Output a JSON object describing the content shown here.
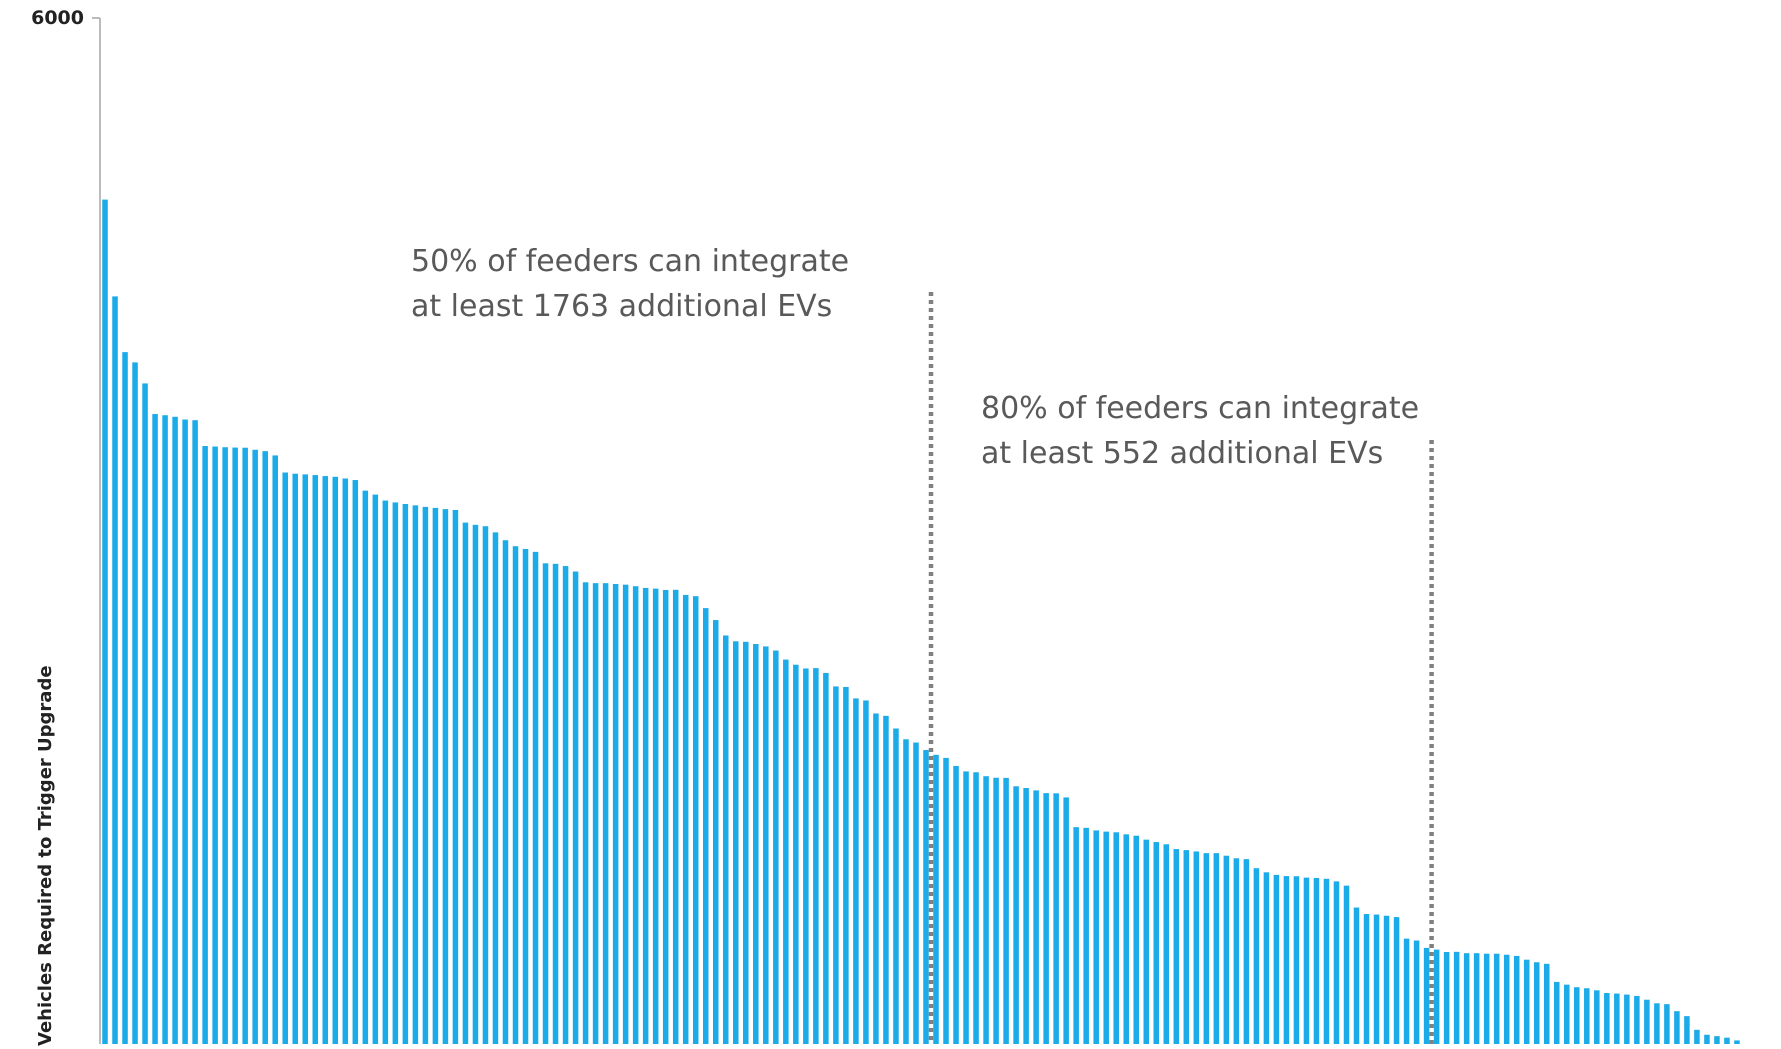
{
  "chart_data": {
    "type": "bar",
    "title": "",
    "xlabel": "",
    "ylabel": "Vehicles Required to Trigger Upgrade",
    "ylim": [
      0,
      6000
    ],
    "y_ticks": [
      "6000"
    ],
    "grid": false,
    "legend": "none",
    "colors": {
      "bar": "#1AABE8",
      "marker_line": "#808080",
      "annotation": "#595959",
      "axis": "#A6A6A6"
    },
    "values": [
      4938,
      4372,
      4046,
      3986,
      3863,
      3684,
      3677,
      3668,
      3652,
      3648,
      3497,
      3494,
      3490,
      3488,
      3487,
      3475,
      3467,
      3442,
      3342,
      3335,
      3331,
      3327,
      3321,
      3317,
      3307,
      3298,
      3236,
      3213,
      3178,
      3167,
      3158,
      3150,
      3141,
      3135,
      3128,
      3123,
      3049,
      3036,
      3028,
      2992,
      2946,
      2911,
      2895,
      2878,
      2811,
      2808,
      2795,
      2763,
      2700,
      2695,
      2695,
      2690,
      2686,
      2677,
      2667,
      2663,
      2655,
      2656,
      2626,
      2619,
      2549,
      2479,
      2389,
      2355,
      2352,
      2339,
      2325,
      2301,
      2248,
      2218,
      2196,
      2198,
      2170,
      2091,
      2088,
      2021,
      2009,
      1933,
      1919,
      1845,
      1782,
      1763,
      1719,
      1691,
      1673,
      1626,
      1594,
      1589,
      1566,
      1557,
      1556,
      1507,
      1497,
      1483,
      1467,
      1466,
      1442,
      1268,
      1264,
      1249,
      1242,
      1238,
      1226,
      1218,
      1195,
      1181,
      1168,
      1140,
      1134,
      1126,
      1116,
      1116,
      1101,
      1086,
      1081,
      1028,
      1004,
      989,
      982,
      981,
      973,
      971,
      966,
      951,
      926,
      798,
      760,
      757,
      750,
      742,
      616,
      605,
      562,
      552,
      538,
      539,
      531,
      531,
      528,
      528,
      522,
      515,
      493,
      478,
      469,
      363,
      347,
      332,
      326,
      314,
      298,
      295,
      289,
      281,
      259,
      238,
      233,
      192,
      163,
      83,
      54,
      46,
      37,
      21,
      0,
      0
    ]
  },
  "annotations": [
    {
      "id": "p50",
      "lines": [
        "50% of feeders can integrate",
        "at least 1763 additional EVs"
      ],
      "percentile": 50,
      "value": 1763
    },
    {
      "id": "p80",
      "lines": [
        "80% of feeders can integrate",
        "at least 552 additional EVs"
      ],
      "percentile": 80,
      "value": 552
    }
  ]
}
